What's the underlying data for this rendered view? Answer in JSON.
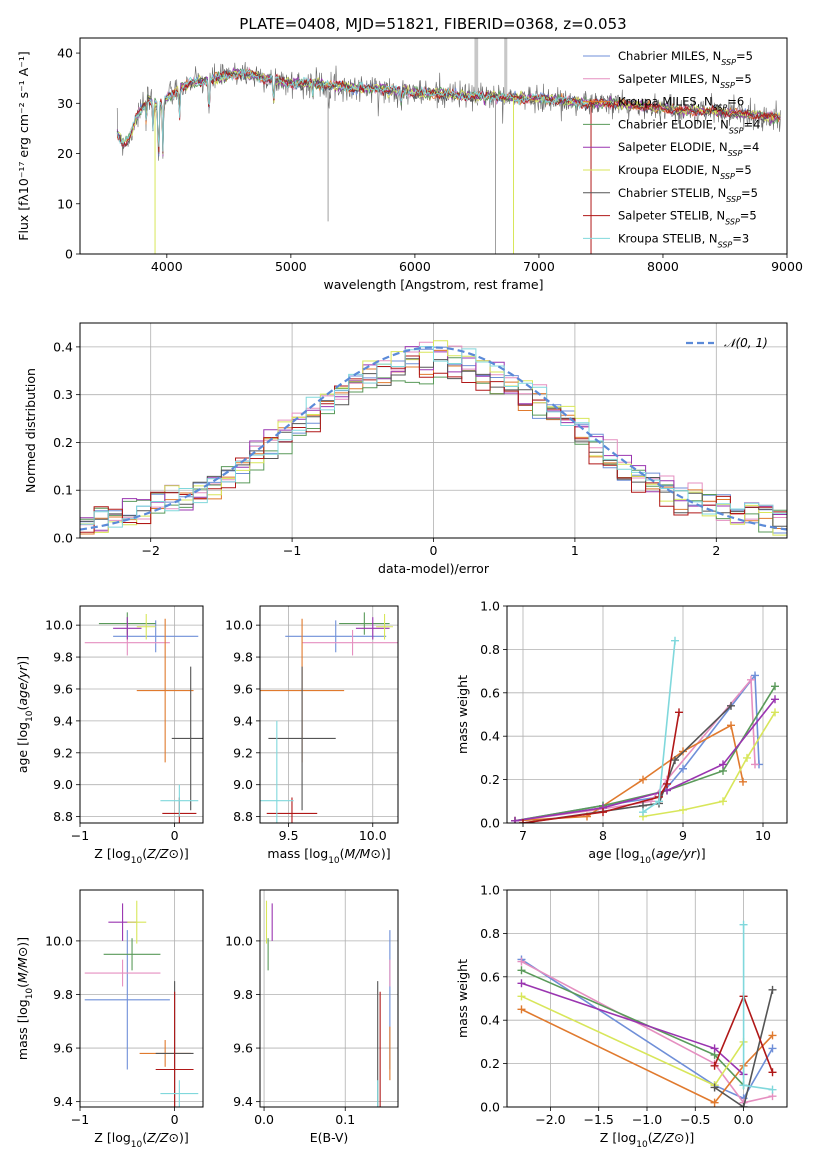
{
  "figure_title": "PLATE=0408, MJD=51821, FIBERID=0368, z=0.053",
  "colors": {
    "Chabrier MILES": "#6f8fd8",
    "Salpeter MILES": "#e58fc0",
    "Kroupa MILES": "#e07a2e",
    "Chabrier ELODIE": "#5a9a5a",
    "Salpeter ELODIE": "#9a35b0",
    "Kroupa ELODIE": "#d8e65a",
    "Chabrier STELIB": "#555555",
    "Salpeter STELIB": "#b01818",
    "Kroupa STELIB": "#80d8dc",
    "normal": "#5b8ad8",
    "grid": "#b0b0b0"
  },
  "chart_data": [
    {
      "id": "spectrum",
      "type": "line",
      "title": "PLATE=0408, MJD=51821, FIBERID=0368, z=0.053",
      "xlabel": "wavelength [Angstrom, rest frame]",
      "ylabel": "Flux [fλ10⁻¹⁷ erg cm⁻² s⁻¹ A⁻¹]",
      "xlim": [
        3300,
        9000
      ],
      "ylim": [
        0,
        43
      ],
      "xticks": [
        4000,
        5000,
        6000,
        7000,
        8000,
        9000
      ],
      "yticks": [
        0,
        10,
        20,
        30,
        40
      ],
      "grid": false,
      "legend_placement": "top-right",
      "legend": [
        {
          "name": "Chabrier MILES",
          "label": "Chabrier MILES, N",
          "sub": "SSP",
          "tail": "=5"
        },
        {
          "name": "Salpeter MILES",
          "label": "Salpeter MILES, N",
          "sub": "SSP",
          "tail": "=5"
        },
        {
          "name": "Kroupa MILES",
          "label": "Kroupa MILES, N",
          "sub": "SSP",
          "tail": "=6"
        },
        {
          "name": "Chabrier ELODIE",
          "label": "Chabrier ELODIE, N",
          "sub": "SSP",
          "tail": "=4"
        },
        {
          "name": "Salpeter ELODIE",
          "label": "Salpeter ELODIE, N",
          "sub": "SSP",
          "tail": "=4"
        },
        {
          "name": "Kroupa ELODIE",
          "label": "Kroupa ELODIE, N",
          "sub": "SSP",
          "tail": "=5"
        },
        {
          "name": "Chabrier STELIB",
          "label": "Chabrier STELIB, N",
          "sub": "SSP",
          "tail": "=5"
        },
        {
          "name": "Salpeter STELIB",
          "label": "Salpeter STELIB, N",
          "sub": "SSP",
          "tail": "=5"
        },
        {
          "name": "Kroupa STELIB",
          "label": "Kroupa STELIB, N",
          "sub": "SSP",
          "tail": "=3"
        }
      ],
      "continuum": [
        [
          3600,
          24
        ],
        [
          3650,
          22
        ],
        [
          3700,
          23
        ],
        [
          3750,
          27
        ],
        [
          3800,
          29
        ],
        [
          3850,
          31
        ],
        [
          3900,
          30
        ],
        [
          3950,
          30
        ],
        [
          4000,
          31
        ],
        [
          4050,
          32
        ],
        [
          4100,
          33
        ],
        [
          4200,
          34
        ],
        [
          4300,
          34.5
        ],
        [
          4400,
          35
        ],
        [
          4500,
          35.5
        ],
        [
          4600,
          36
        ],
        [
          4700,
          35.5
        ],
        [
          4800,
          35
        ],
        [
          4900,
          34.5
        ],
        [
          5000,
          34
        ],
        [
          5100,
          34
        ],
        [
          5200,
          34
        ],
        [
          5300,
          33.5
        ],
        [
          5400,
          33.5
        ],
        [
          5500,
          33
        ],
        [
          5600,
          33
        ],
        [
          5700,
          33
        ],
        [
          5800,
          32.5
        ],
        [
          5900,
          32.5
        ],
        [
          6000,
          32
        ],
        [
          6200,
          32
        ],
        [
          6400,
          31.5
        ],
        [
          6600,
          31.5
        ],
        [
          6800,
          31
        ],
        [
          7000,
          31
        ],
        [
          7200,
          30.5
        ],
        [
          7400,
          30
        ],
        [
          7600,
          30
        ],
        [
          7800,
          29.5
        ],
        [
          8000,
          29
        ],
        [
          8200,
          28.5
        ],
        [
          8400,
          28.5
        ],
        [
          8600,
          28
        ],
        [
          8800,
          27.5
        ],
        [
          8950,
          27
        ]
      ],
      "absorption_lines": [
        [
          3835,
          4
        ],
        [
          3889,
          5
        ],
        [
          3933,
          12
        ],
        [
          3968,
          10
        ],
        [
          4102,
          6
        ],
        [
          4340,
          7
        ],
        [
          4861,
          5
        ],
        [
          5175,
          2
        ],
        [
          5890,
          2
        ],
        [
          6563,
          1
        ]
      ],
      "data_spikes": [
        [
          5300,
          6.5
        ],
        [
          6650,
          0
        ]
      ],
      "model_dropouts": [
        {
          "series": "Kroupa ELODIE",
          "x": 3905,
          "y": 0
        },
        {
          "series": "Kroupa ELODIE",
          "x": 6795,
          "y": 0
        },
        {
          "series": "Salpeter STELIB",
          "x": 7420,
          "y": 0
        }
      ]
    },
    {
      "id": "residuals",
      "type": "bar",
      "xlabel": "(data-model)/error",
      "ylabel": "Normed distribution",
      "xlim": [
        -2.5,
        2.5
      ],
      "ylim": [
        0,
        0.45
      ],
      "xticks": [
        -2,
        -1,
        0,
        1,
        2
      ],
      "yticks": [
        0.0,
        0.1,
        0.2,
        0.3,
        0.4
      ],
      "grid": true,
      "legend_placement": "top-right",
      "legend": [
        {
          "name": "normal",
          "label": "𝒩(0, 1)"
        }
      ],
      "bin_width": 0.1
    },
    {
      "id": "age-vs-Z",
      "type": "scatter",
      "xlabel": "Z [log10(Z/Z⊙)]",
      "ylabel": "age  [log10(age/yr)]",
      "xlim": [
        -1.0,
        0.3
      ],
      "ylim": [
        8.76,
        10.12
      ],
      "xticks": [
        -1,
        0
      ],
      "yticks": [
        8.8,
        9.0,
        9.2,
        9.4,
        9.6,
        9.8,
        10.0
      ],
      "grid": true,
      "points": [
        {
          "series": "Chabrier MILES",
          "x": -0.2,
          "y": 9.93,
          "xerr": 0.45,
          "yerr": 0.1
        },
        {
          "series": "Salpeter MILES",
          "x": -0.5,
          "y": 9.89,
          "xerr": 0.45,
          "yerr": 0.08
        },
        {
          "series": "Kroupa MILES",
          "x": -0.1,
          "y": 9.59,
          "xerr": 0.3,
          "yerr": 0.45
        },
        {
          "series": "Chabrier ELODIE",
          "x": -0.5,
          "y": 10.01,
          "xerr": 0.3,
          "yerr": 0.07
        },
        {
          "series": "Salpeter ELODIE",
          "x": -0.5,
          "y": 9.98,
          "xerr": 0.15,
          "yerr": 0.07
        },
        {
          "series": "Kroupa ELODIE",
          "x": -0.3,
          "y": 9.99,
          "xerr": 0.1,
          "yerr": 0.08
        },
        {
          "series": "Chabrier STELIB",
          "x": 0.17,
          "y": 9.29,
          "xerr": 0.2,
          "yerr": 0.45
        },
        {
          "series": "Salpeter STELIB",
          "x": 0.05,
          "y": 8.82,
          "xerr": 0.18,
          "yerr": 0.1
        },
        {
          "series": "Kroupa STELIB",
          "x": 0.05,
          "y": 8.9,
          "xerr": 0.2,
          "yerr": 0.1
        }
      ]
    },
    {
      "id": "age-vs-mass",
      "type": "scatter",
      "xlabel": "mass [log10(M/M⊙)]",
      "ylabel": "",
      "xlim": [
        9.33,
        10.15
      ],
      "ylim": [
        8.76,
        10.12
      ],
      "xticks": [
        9.5,
        10.0
      ],
      "yticks": [
        8.8,
        9.0,
        9.2,
        9.4,
        9.6,
        9.8,
        10.0
      ],
      "grid": true,
      "points": [
        {
          "series": "Chabrier MILES",
          "x": 9.78,
          "y": 9.93,
          "xerr": 0.3,
          "yerr": 0.1
        },
        {
          "series": "Salpeter MILES",
          "x": 9.88,
          "y": 9.89,
          "xerr": 0.3,
          "yerr": 0.08
        },
        {
          "series": "Kroupa MILES",
          "x": 9.58,
          "y": 9.59,
          "xerr": 0.25,
          "yerr": 0.45
        },
        {
          "series": "Chabrier ELODIE",
          "x": 9.95,
          "y": 10.01,
          "xerr": 0.15,
          "yerr": 0.07
        },
        {
          "series": "Salpeter ELODIE",
          "x": 10.0,
          "y": 9.98,
          "xerr": 0.1,
          "yerr": 0.07
        },
        {
          "series": "Kroupa ELODIE",
          "x": 10.07,
          "y": 9.99,
          "xerr": 0.05,
          "yerr": 0.08
        },
        {
          "series": "Chabrier STELIB",
          "x": 9.58,
          "y": 9.29,
          "xerr": 0.2,
          "yerr": 0.45
        },
        {
          "series": "Salpeter STELIB",
          "x": 9.52,
          "y": 8.82,
          "xerr": 0.15,
          "yerr": 0.1
        },
        {
          "series": "Kroupa STELIB",
          "x": 9.43,
          "y": 8.9,
          "xerr": 0.1,
          "yerr": 0.5
        }
      ]
    },
    {
      "id": "weight-vs-age",
      "type": "line",
      "xlabel": "age  [log10(age/yr)]",
      "ylabel": "mass weight",
      "xlim": [
        6.8,
        10.3
      ],
      "ylim": [
        0,
        1.0
      ],
      "xticks": [
        7,
        8,
        9,
        10
      ],
      "yticks": [
        0.0,
        0.2,
        0.4,
        0.6,
        0.8,
        1.0
      ],
      "grid": true,
      "series": [
        {
          "name": "Chabrier MILES",
          "x": [
            6.9,
            8.0,
            8.7,
            9.0,
            9.9,
            9.95
          ],
          "y": [
            0.01,
            0.08,
            0.12,
            0.25,
            0.68,
            0.27
          ]
        },
        {
          "name": "Salpeter MILES",
          "x": [
            6.9,
            7.9,
            8.6,
            8.8,
            9.85,
            9.9
          ],
          "y": [
            0.01,
            0.06,
            0.1,
            0.2,
            0.66,
            0.27
          ]
        },
        {
          "name": "Kroupa MILES",
          "x": [
            6.9,
            7.8,
            8.5,
            9.0,
            9.6,
            9.75
          ],
          "y": [
            0.01,
            0.03,
            0.2,
            0.33,
            0.45,
            0.19
          ]
        },
        {
          "name": "Chabrier ELODIE",
          "x": [
            6.9,
            8.0,
            8.8,
            9.5,
            10.15
          ],
          "y": [
            0.01,
            0.08,
            0.15,
            0.24,
            0.63
          ]
        },
        {
          "name": "Salpeter ELODIE",
          "x": [
            6.9,
            8.0,
            8.8,
            9.5,
            10.15
          ],
          "y": [
            0.01,
            0.07,
            0.15,
            0.27,
            0.57
          ]
        },
        {
          "name": "Kroupa ELODIE",
          "x": [
            8.5,
            9.0,
            9.5,
            9.8,
            10.15
          ],
          "y": [
            0.03,
            0.06,
            0.1,
            0.3,
            0.51
          ]
        },
        {
          "name": "Chabrier STELIB",
          "x": [
            7.0,
            8.5,
            8.7,
            8.9,
            9.6
          ],
          "y": [
            0.0,
            0.08,
            0.09,
            0.29,
            0.54
          ]
        },
        {
          "name": "Salpeter STELIB",
          "x": [
            7.0,
            8.0,
            8.7,
            8.8,
            8.95
          ],
          "y": [
            0.0,
            0.05,
            0.12,
            0.18,
            0.51
          ]
        },
        {
          "name": "Kroupa STELIB",
          "x": [
            8.5,
            8.7,
            8.9
          ],
          "y": [
            0.05,
            0.1,
            0.84
          ]
        }
      ]
    },
    {
      "id": "mass-vs-Z",
      "type": "scatter",
      "xlabel": "Z [log10(Z/Z⊙)]",
      "ylabel": "mass [log10(M/M⊙)]",
      "xlim": [
        -1.0,
        0.3
      ],
      "ylim": [
        9.38,
        10.19
      ],
      "xticks": [
        -1,
        0
      ],
      "yticks": [
        9.4,
        9.6,
        9.8,
        10.0
      ],
      "grid": true,
      "points": [
        {
          "series": "Chabrier MILES",
          "x": -0.5,
          "y": 9.78,
          "xerr": 0.45,
          "yerr": 0.26
        },
        {
          "series": "Salpeter MILES",
          "x": -0.55,
          "y": 9.88,
          "xerr": 0.4,
          "yerr": 0.05
        },
        {
          "series": "Kroupa MILES",
          "x": -0.1,
          "y": 9.58,
          "xerr": 0.27,
          "yerr": 0.05
        },
        {
          "series": "Chabrier ELODIE",
          "x": -0.45,
          "y": 9.95,
          "xerr": 0.3,
          "yerr": 0.06
        },
        {
          "series": "Salpeter ELODIE",
          "x": -0.55,
          "y": 10.07,
          "xerr": 0.15,
          "yerr": 0.07
        },
        {
          "series": "Kroupa ELODIE",
          "x": -0.4,
          "y": 10.07,
          "xerr": 0.1,
          "yerr": 0.08
        },
        {
          "series": "Chabrier STELIB",
          "x": 0.0,
          "y": 9.58,
          "xerr": 0.2,
          "yerr": 0.27
        },
        {
          "series": "Salpeter STELIB",
          "x": 0.0,
          "y": 9.52,
          "xerr": 0.2,
          "yerr": 0.29
        },
        {
          "series": "Kroupa STELIB",
          "x": 0.05,
          "y": 9.43,
          "xerr": 0.2,
          "yerr": 0.05
        }
      ]
    },
    {
      "id": "mass-vs-ebv",
      "type": "scatter",
      "xlabel": "E(B-V)",
      "ylabel": "",
      "xlim": [
        -0.005,
        0.165
      ],
      "ylim": [
        9.38,
        10.19
      ],
      "xticks": [
        0.0,
        0.1
      ],
      "yticks": [
        9.4,
        9.6,
        9.8,
        10.0
      ],
      "grid": true,
      "points": [
        {
          "series": "Chabrier MILES",
          "x": 0.155,
          "y": 9.78,
          "xerr": 0.0,
          "yerr": 0.26
        },
        {
          "series": "Salpeter MILES",
          "x": 0.155,
          "y": 9.88,
          "xerr": 0.0,
          "yerr": 0.05
        },
        {
          "series": "Kroupa MILES",
          "x": 0.155,
          "y": 9.58,
          "xerr": 0.0,
          "yerr": 0.1
        },
        {
          "series": "Chabrier ELODIE",
          "x": 0.005,
          "y": 9.95,
          "xerr": 0.0,
          "yerr": 0.06
        },
        {
          "series": "Salpeter ELODIE",
          "x": 0.01,
          "y": 10.07,
          "xerr": 0.0,
          "yerr": 0.07
        },
        {
          "series": "Kroupa ELODIE",
          "x": 0.003,
          "y": 10.07,
          "xerr": 0.0,
          "yerr": 0.08
        },
        {
          "series": "Chabrier STELIB",
          "x": 0.14,
          "y": 9.58,
          "xerr": 0.0,
          "yerr": 0.27
        },
        {
          "series": "Salpeter STELIB",
          "x": 0.143,
          "y": 9.52,
          "xerr": 0.0,
          "yerr": 0.29
        },
        {
          "series": "Kroupa STELIB",
          "x": 0.14,
          "y": 9.43,
          "xerr": 0.0,
          "yerr": 0.05
        }
      ]
    },
    {
      "id": "weight-vs-Z",
      "type": "line",
      "xlabel": "Z [log10(Z/Z⊙)]",
      "ylabel": "mass weight",
      "xlim": [
        -2.45,
        0.45
      ],
      "ylim": [
        0,
        1.0
      ],
      "xticks": [
        -2.0,
        -1.5,
        -1.0,
        -0.5,
        0.0
      ],
      "yticks": [
        0.0,
        0.2,
        0.4,
        0.6,
        0.8,
        1.0
      ],
      "grid": true,
      "series": [
        {
          "name": "Chabrier MILES",
          "x": [
            -2.3,
            -0.3,
            0.0,
            0.3
          ],
          "y": [
            0.68,
            0.1,
            0.04,
            0.27
          ]
        },
        {
          "name": "Salpeter MILES",
          "x": [
            -2.3,
            -0.3,
            0.0,
            0.3
          ],
          "y": [
            0.67,
            0.2,
            0.02,
            0.05
          ]
        },
        {
          "name": "Kroupa MILES",
          "x": [
            -2.3,
            -0.3,
            0.0,
            0.3
          ],
          "y": [
            0.45,
            0.02,
            0.19,
            0.33
          ]
        },
        {
          "name": "Chabrier ELODIE",
          "x": [
            -2.3,
            -0.3,
            0.0
          ],
          "y": [
            0.63,
            0.24,
            0.1
          ]
        },
        {
          "name": "Salpeter ELODIE",
          "x": [
            -2.3,
            -0.3,
            0.0
          ],
          "y": [
            0.57,
            0.27,
            0.15
          ]
        },
        {
          "name": "Kroupa ELODIE",
          "x": [
            -2.3,
            -0.3,
            0.0
          ],
          "y": [
            0.51,
            0.1,
            0.3
          ]
        },
        {
          "name": "Chabrier STELIB",
          "x": [
            -0.3,
            0.0,
            0.3
          ],
          "y": [
            0.09,
            0.0,
            0.54
          ]
        },
        {
          "name": "Salpeter STELIB",
          "x": [
            -0.3,
            0.0,
            0.3
          ],
          "y": [
            0.19,
            0.51,
            0.16
          ]
        },
        {
          "name": "Kroupa STELIB",
          "x": [
            0.0,
            0.0,
            0.3
          ],
          "y": [
            0.84,
            0.1,
            0.08
          ]
        }
      ]
    }
  ]
}
